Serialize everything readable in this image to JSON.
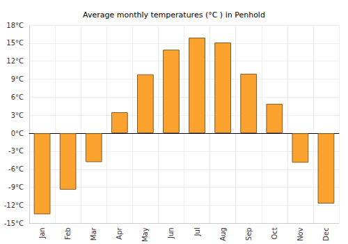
{
  "chart_data": {
    "type": "bar",
    "title": "Average monthly temperatures (°C ) in Penhold",
    "categories": [
      "Jan",
      "Feb",
      "Mar",
      "Apr",
      "May",
      "Jun",
      "Jul",
      "Aug",
      "Sep",
      "Oct",
      "Nov",
      "Dec"
    ],
    "values": [
      -13.5,
      -9.4,
      -4.8,
      3.5,
      9.8,
      13.9,
      15.9,
      15.1,
      9.9,
      4.9,
      -4.9,
      -11.7
    ],
    "color": "#fca32f",
    "ylim": [
      -15,
      18
    ],
    "yticks": [
      {
        "value": -15,
        "label": "-15°C"
      },
      {
        "value": -12,
        "label": "-12°C"
      },
      {
        "value": -9,
        "label": "-9°C"
      },
      {
        "value": -6,
        "label": "-6°C"
      },
      {
        "value": -3,
        "label": "-3°C"
      },
      {
        "value": 0,
        "label": "0°C"
      },
      {
        "value": 3,
        "label": "3°C"
      },
      {
        "value": 6,
        "label": "6°C"
      },
      {
        "value": 9,
        "label": "9°C"
      },
      {
        "value": 12,
        "label": "12°C"
      },
      {
        "value": 15,
        "label": "15°C"
      },
      {
        "value": 18,
        "label": "18°C"
      }
    ],
    "grid": true
  }
}
